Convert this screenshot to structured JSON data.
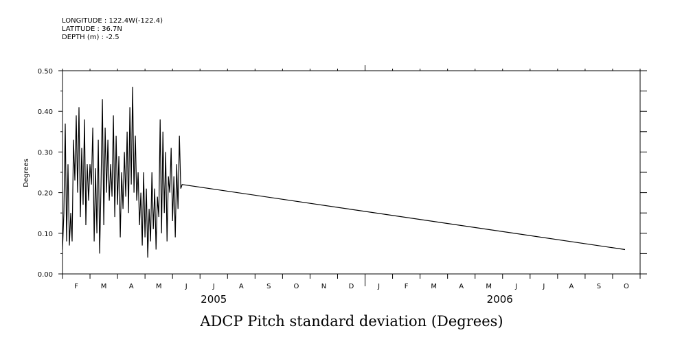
{
  "header": {
    "longitude": "LONGITUDE : 122.4W(-122.4)",
    "latitude": "LATITUDE : 36.7N",
    "depth": "DEPTH (m) : -2.5"
  },
  "chart_data": {
    "type": "line",
    "title": "ADCP Pitch standard deviation (Degrees)",
    "xlabel": "",
    "ylabel": "Degrees",
    "ylim": [
      0.0,
      0.5
    ],
    "yticks": [
      "0.00",
      "0.10",
      "0.20",
      "0.30",
      "0.40",
      "0.50"
    ],
    "ytick_values": [
      0.0,
      0.1,
      0.2,
      0.3,
      0.4,
      0.5
    ],
    "xlim_months": [
      0,
      21
    ],
    "month_labels": [
      "F",
      "M",
      "A",
      "M",
      "J",
      "J",
      "A",
      "S",
      "O",
      "N",
      "D",
      "J",
      "F",
      "M",
      "A",
      "M",
      "J",
      "J",
      "A",
      "S",
      "O"
    ],
    "year_labels": [
      {
        "text": "2005",
        "month": 5.5
      },
      {
        "text": "2006",
        "month": 15.9
      }
    ],
    "series": [
      {
        "name": "ADCP Pitch standard deviation",
        "x_month": [
          0.0,
          0.05,
          0.1,
          0.15,
          0.2,
          0.25,
          0.3,
          0.35,
          0.4,
          0.45,
          0.5,
          0.55,
          0.6,
          0.65,
          0.7,
          0.75,
          0.8,
          0.85,
          0.9,
          0.95,
          1.0,
          1.05,
          1.1,
          1.15,
          1.2,
          1.25,
          1.3,
          1.35,
          1.4,
          1.45,
          1.5,
          1.55,
          1.6,
          1.65,
          1.7,
          1.75,
          1.8,
          1.85,
          1.9,
          1.95,
          2.0,
          2.05,
          2.1,
          2.15,
          2.2,
          2.25,
          2.3,
          2.35,
          2.4,
          2.45,
          2.5,
          2.55,
          2.6,
          2.65,
          2.7,
          2.75,
          2.8,
          2.85,
          2.9,
          2.95,
          3.0,
          3.05,
          3.1,
          3.15,
          3.2,
          3.25,
          3.3,
          3.35,
          3.4,
          3.45,
          3.5,
          3.55,
          3.6,
          3.65,
          3.7,
          3.75,
          3.8,
          3.85,
          3.9,
          3.95,
          4.0,
          4.05,
          4.1,
          4.15,
          4.2,
          4.25,
          4.3,
          4.35,
          20.45
        ],
        "values": [
          0.06,
          0.15,
          0.37,
          0.08,
          0.27,
          0.07,
          0.15,
          0.08,
          0.33,
          0.23,
          0.39,
          0.2,
          0.41,
          0.14,
          0.31,
          0.17,
          0.38,
          0.12,
          0.27,
          0.18,
          0.27,
          0.22,
          0.36,
          0.08,
          0.26,
          0.1,
          0.33,
          0.05,
          0.22,
          0.43,
          0.12,
          0.36,
          0.2,
          0.33,
          0.18,
          0.27,
          0.19,
          0.39,
          0.14,
          0.34,
          0.17,
          0.29,
          0.09,
          0.25,
          0.16,
          0.3,
          0.19,
          0.35,
          0.15,
          0.41,
          0.22,
          0.46,
          0.2,
          0.34,
          0.18,
          0.25,
          0.12,
          0.2,
          0.07,
          0.25,
          0.09,
          0.21,
          0.04,
          0.16,
          0.08,
          0.25,
          0.11,
          0.21,
          0.06,
          0.19,
          0.14,
          0.38,
          0.1,
          0.35,
          0.15,
          0.3,
          0.08,
          0.24,
          0.2,
          0.31,
          0.13,
          0.24,
          0.09,
          0.27,
          0.16,
          0.34,
          0.21,
          0.22,
          0.06
        ]
      }
    ]
  }
}
